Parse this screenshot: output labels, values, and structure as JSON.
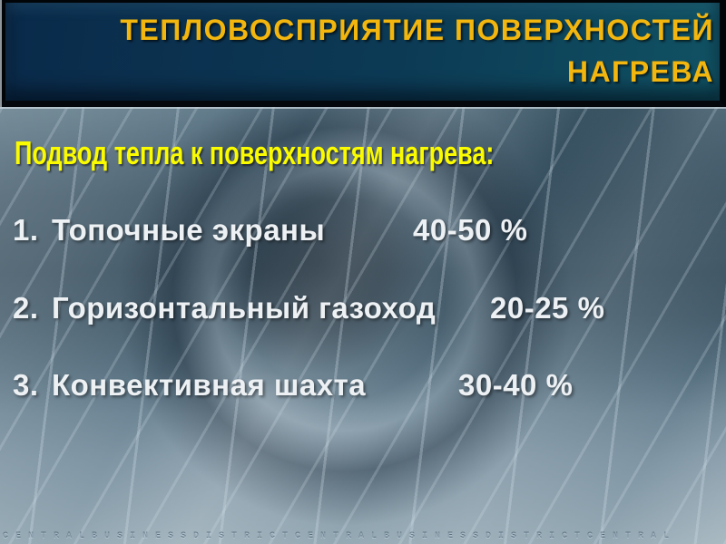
{
  "slide": {
    "title": "ТЕПЛОВОСПРИЯТИЕ ПОВЕРХНОСТЕЙ НАГРЕВА",
    "body_heading": "Подвод тепла к поверхностям нагрева:",
    "list": [
      {
        "number": "1.",
        "label": "Топочные экраны",
        "value": "40-50 %"
      },
      {
        "number": "2.",
        "label": "Горизонтальный газоход",
        "value": "20-25 %"
      },
      {
        "number": "3.",
        "label": "Конвективная шахта",
        "value": "30-40 %"
      }
    ],
    "watermark_text": "CENTRALBUSINESSDISTRICTCENTRALBUSINESSDISTRICTCENTRAL",
    "colors": {
      "title_text": "#F2B60E",
      "body_heading_text": "#FBFB00",
      "list_text": "#EDF1F4",
      "titlebar_gradient_start": "#0A2A4A",
      "titlebar_gradient_end": "#105263",
      "titlebar_border": "#000000",
      "background_base": "#5E7786"
    }
  }
}
